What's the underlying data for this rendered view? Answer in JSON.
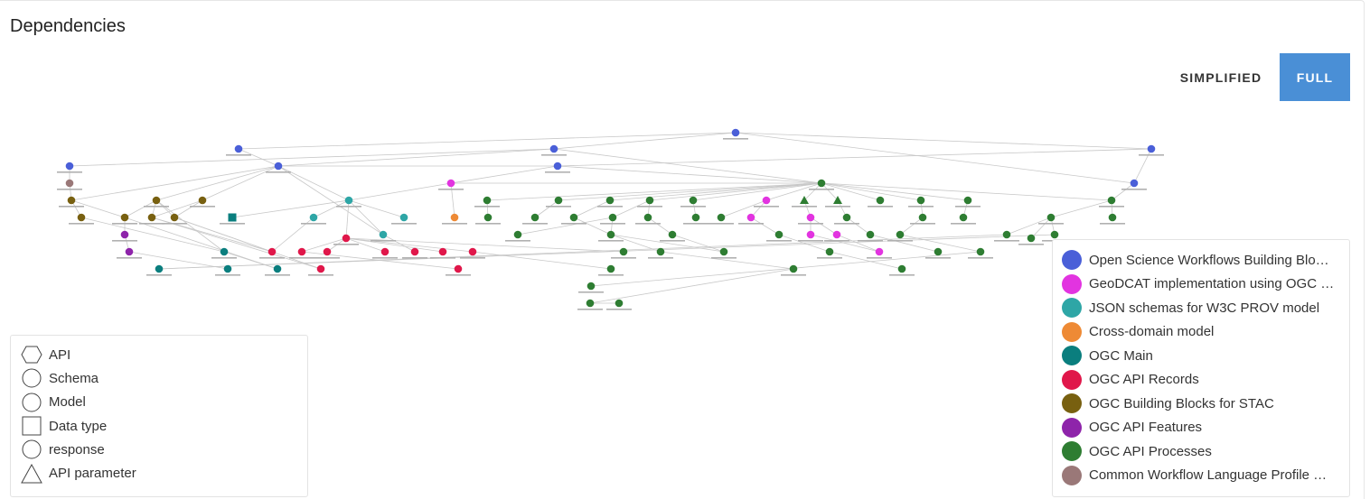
{
  "page": {
    "title": "Dependencies"
  },
  "toggle": {
    "simplified_label": "SIMPLIFIED",
    "full_label": "FULL",
    "active": "full"
  },
  "shape_legend": [
    {
      "shape": "hexagon",
      "label": "API"
    },
    {
      "shape": "circle",
      "label": "Schema"
    },
    {
      "shape": "circle",
      "label": "Model"
    },
    {
      "shape": "square",
      "label": "Data type"
    },
    {
      "shape": "circle",
      "label": "response"
    },
    {
      "shape": "triangle",
      "label": "API parameter"
    }
  ],
  "group_legend": [
    {
      "label": "Open Science Workflows Building Blo…",
      "color": "#4a5fd8"
    },
    {
      "label": "GeoDCAT implementation using OGC …",
      "color": "#e234e0"
    },
    {
      "label": "JSON schemas for W3C PROV model",
      "color": "#2ea6a6"
    },
    {
      "label": "Cross-domain model",
      "color": "#ee8a35"
    },
    {
      "label": "OGC Main",
      "color": "#0a7e7e"
    },
    {
      "label": "OGC API Records",
      "color": "#e0174a"
    },
    {
      "label": "OGC Building Blocks for STAC",
      "color": "#786010"
    },
    {
      "label": "OGC API Features",
      "color": "#8e24aa"
    },
    {
      "label": "OGC API Processes",
      "color": "#2e7d32"
    },
    {
      "label": "Common Workflow Language Profile …",
      "color": "#9a7878"
    }
  ]
}
